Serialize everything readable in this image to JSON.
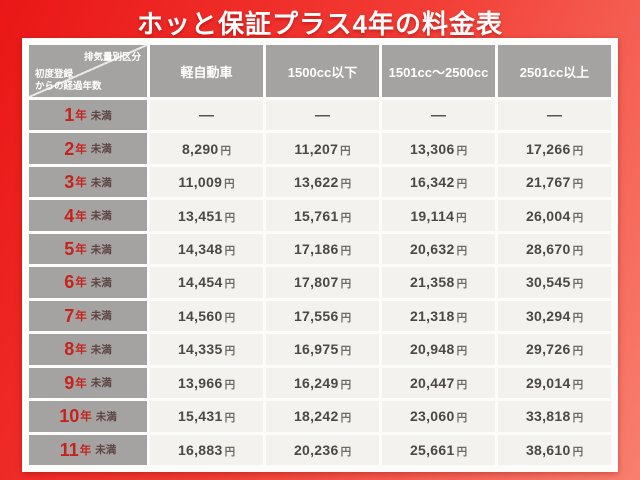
{
  "title": "ホッと保証プラス4年の料金表",
  "table": {
    "corner": {
      "top_right": "排気量別区分",
      "bottom_left_line1": "初度登録",
      "bottom_left_line2": "からの経過年数"
    },
    "columns": [
      "軽自動車",
      "1500cc以下",
      "1501cc～2500cc",
      "2501cc以上"
    ],
    "year_suffix": "年",
    "qualifier": "未満",
    "unit": "円",
    "dash": "—",
    "rows": [
      {
        "year": "1",
        "values": [
          "—",
          "—",
          "—",
          "—"
        ]
      },
      {
        "year": "2",
        "values": [
          "8,290",
          "11,207",
          "13,306",
          "17,266"
        ]
      },
      {
        "year": "3",
        "values": [
          "11,009",
          "13,622",
          "16,342",
          "21,767"
        ]
      },
      {
        "year": "4",
        "values": [
          "13,451",
          "15,761",
          "19,114",
          "26,004"
        ]
      },
      {
        "year": "5",
        "values": [
          "14,348",
          "17,186",
          "20,632",
          "28,670"
        ]
      },
      {
        "year": "6",
        "values": [
          "14,454",
          "17,807",
          "21,358",
          "30,545"
        ]
      },
      {
        "year": "7",
        "values": [
          "14,560",
          "17,556",
          "21,318",
          "30,294"
        ]
      },
      {
        "year": "8",
        "values": [
          "14,335",
          "16,975",
          "20,948",
          "29,726"
        ]
      },
      {
        "year": "9",
        "values": [
          "13,966",
          "16,249",
          "20,447",
          "29,014"
        ]
      },
      {
        "year": "10",
        "values": [
          "15,431",
          "18,242",
          "23,060",
          "33,818"
        ]
      },
      {
        "year": "11",
        "values": [
          "16,883",
          "20,236",
          "25,661",
          "38,610"
        ]
      }
    ]
  },
  "colors": {
    "background_red_start": "#ea1717",
    "background_red_end": "#f87f6e",
    "header_gray": "#a5a3a1",
    "cell_bg": "#f3f2ee",
    "year_red": "#c4231d",
    "qualifier_brown": "#5d4644",
    "value_gray": "#4b4845"
  },
  "chart_data": {
    "type": "table",
    "title": "ホッと保証プラス4年の料金表",
    "row_label_header": "初度登録からの経過年数",
    "column_group_header": "排気量別区分",
    "columns": [
      "軽自動車",
      "1500cc以下",
      "1501cc～2500cc",
      "2501cc以上"
    ],
    "row_labels": [
      "1年未満",
      "2年未満",
      "3年未満",
      "4年未満",
      "5年未満",
      "6年未満",
      "7年未満",
      "8年未満",
      "9年未満",
      "10年未満",
      "11年未満"
    ],
    "unit": "円",
    "values": [
      [
        null,
        null,
        null,
        null
      ],
      [
        8290,
        11207,
        13306,
        17266
      ],
      [
        11009,
        13622,
        16342,
        21767
      ],
      [
        13451,
        15761,
        19114,
        26004
      ],
      [
        14348,
        17186,
        20632,
        28670
      ],
      [
        14454,
        17807,
        21358,
        30545
      ],
      [
        14560,
        17556,
        21318,
        30294
      ],
      [
        14335,
        16975,
        20948,
        29726
      ],
      [
        13966,
        16249,
        20447,
        29014
      ],
      [
        15431,
        18242,
        23060,
        33818
      ],
      [
        16883,
        20236,
        25661,
        38610
      ]
    ]
  }
}
